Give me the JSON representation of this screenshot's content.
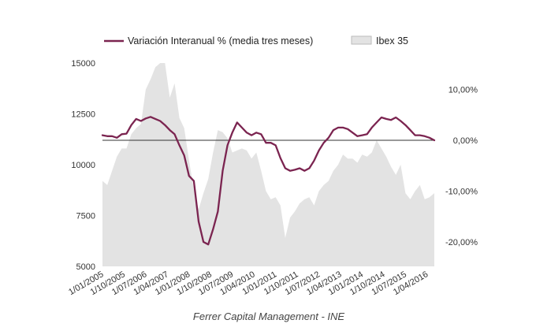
{
  "caption": "Ferrer Capital Management - INE",
  "chart_data": {
    "type": "line",
    "title": "",
    "xlabel": "",
    "x_tick_labels": [
      "1/01/2005",
      "1/10/2005",
      "1/07/2006",
      "1/04/2007",
      "1/01/2008",
      "1/10/2008",
      "1/07/2009",
      "1/04/2010",
      "1/01/2011",
      "1/10/2011",
      "1/07/2012",
      "1/04/2013",
      "1/01/2014",
      "1/10/2014",
      "1/07/2015",
      "1/04/2016"
    ],
    "left_axis": {
      "ylim": [
        5000,
        15000
      ],
      "tick_labels": [
        "5000",
        "7500",
        "10000",
        "12500",
        "15000"
      ],
      "tick_values": [
        5000,
        7500,
        10000,
        12500,
        15000
      ]
    },
    "right_axis": {
      "ylim": [
        -0.2,
        0.1
      ],
      "tick_labels": [
        "-20,00%",
        "-10,00%",
        "0,00%",
        "10,00%"
      ],
      "tick_values": [
        -0.2,
        -0.1,
        0.0,
        0.1
      ]
    },
    "zero_line": true,
    "legend_position": "top",
    "series": [
      {
        "name": "Variación Interanual % (media tres meses)",
        "axis": "right",
        "color": "#7b2450",
        "style": "line",
        "months": [
          0,
          2,
          4,
          6,
          8,
          10,
          12,
          14,
          16,
          18,
          20,
          22,
          24,
          26,
          28,
          30,
          32,
          34,
          36,
          38,
          40,
          42,
          44,
          46,
          48,
          50,
          52,
          54,
          56,
          58,
          60,
          62,
          64,
          66,
          68,
          70,
          72,
          74,
          76,
          78,
          80,
          82,
          84,
          86,
          88,
          90,
          92,
          94,
          96,
          98,
          100,
          102,
          104,
          106,
          108,
          110,
          112,
          114,
          116,
          118,
          120,
          122,
          124,
          126,
          128,
          130,
          132,
          134,
          136,
          138
        ],
        "values": [
          0.01,
          0.008,
          0.008,
          0.005,
          0.012,
          0.013,
          0.03,
          0.042,
          0.038,
          0.043,
          0.046,
          0.042,
          0.038,
          0.03,
          0.02,
          0.012,
          -0.01,
          -0.03,
          -0.07,
          -0.08,
          -0.16,
          -0.2,
          -0.205,
          -0.175,
          -0.14,
          -0.06,
          -0.01,
          0.015,
          0.035,
          0.025,
          0.015,
          0.01,
          0.015,
          0.012,
          -0.005,
          -0.005,
          -0.01,
          -0.035,
          -0.055,
          -0.06,
          -0.058,
          -0.055,
          -0.06,
          -0.055,
          -0.04,
          -0.02,
          -0.005,
          0.005,
          0.02,
          0.025,
          0.025,
          0.022,
          0.015,
          0.008,
          0.01,
          0.012,
          0.025,
          0.035,
          0.045,
          0.042,
          0.04,
          0.045,
          0.038,
          0.03,
          0.02,
          0.01,
          0.01,
          0.008,
          0.005,
          0.0
        ]
      },
      {
        "name": "Ibex 35",
        "axis": "left",
        "color": "#e3e3e3",
        "style": "area",
        "months": [
          0,
          2,
          4,
          6,
          8,
          10,
          12,
          14,
          16,
          18,
          20,
          22,
          24,
          26,
          28,
          30,
          32,
          34,
          36,
          38,
          40,
          42,
          44,
          46,
          48,
          50,
          52,
          54,
          56,
          58,
          60,
          62,
          64,
          66,
          68,
          70,
          72,
          74,
          76,
          78,
          80,
          82,
          84,
          86,
          88,
          90,
          92,
          94,
          96,
          98,
          100,
          102,
          104,
          106,
          108,
          110,
          112,
          114,
          116,
          118,
          120,
          122,
          124,
          126,
          128,
          130,
          132,
          134,
          136,
          138
        ],
        "values": [
          9200,
          9000,
          9700,
          10400,
          10800,
          10800,
          11500,
          11800,
          12000,
          13700,
          14200,
          14800,
          15300,
          15500,
          13300,
          14000,
          12300,
          11800,
          10200,
          8800,
          7800,
          8600,
          9300,
          10600,
          11700,
          11600,
          11300,
          10600,
          10700,
          10800,
          10700,
          10300,
          10600,
          9700,
          8700,
          8300,
          8400,
          8000,
          6400,
          7400,
          7700,
          8100,
          8300,
          8400,
          8000,
          8700,
          9000,
          9200,
          9700,
          10000,
          10500,
          10300,
          10300,
          10100,
          10500,
          10400,
          10600,
          11200,
          10800,
          10400,
          9900,
          9500,
          10000,
          8600,
          8300,
          8700,
          9000,
          8300,
          8400,
          8600
        ]
      }
    ]
  }
}
